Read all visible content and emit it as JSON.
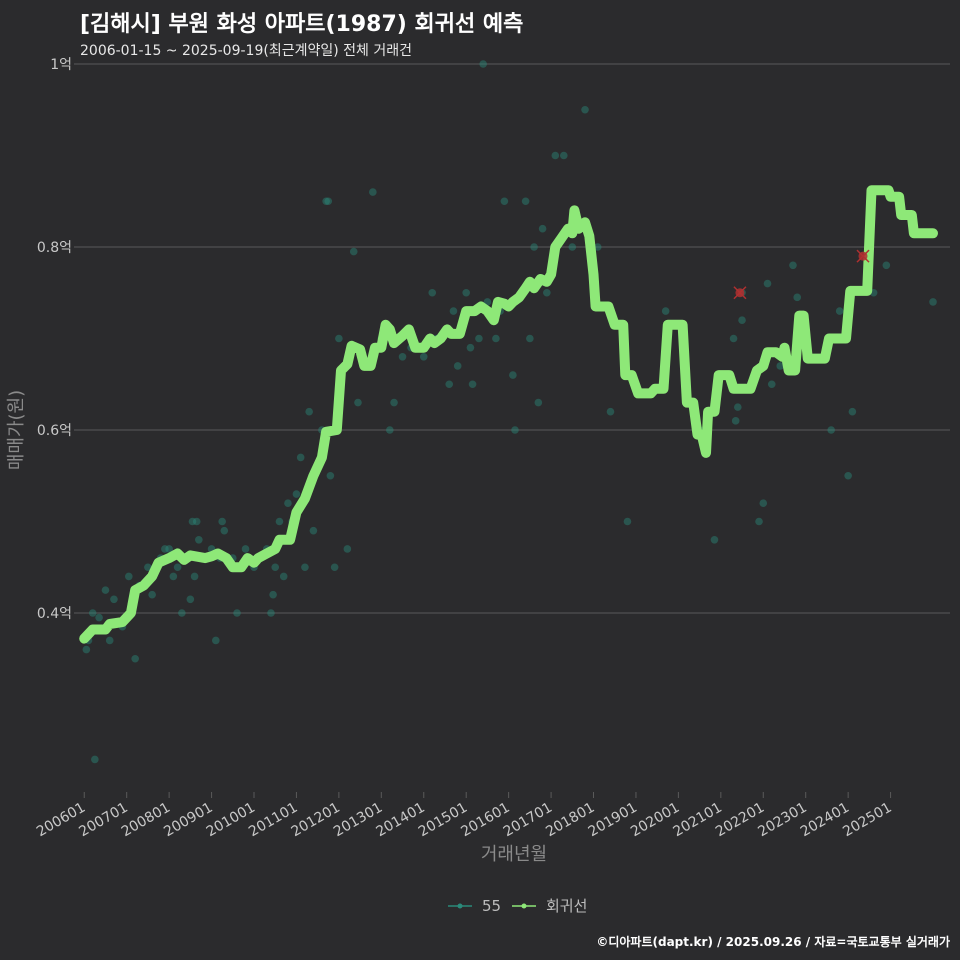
{
  "header": {
    "title": "[김해시] 부원 화성 아파트(1987) 회귀선 예측",
    "subtitle": "2006-01-15 ~ 2025-09-19(최근계약일) 전체 거래건"
  },
  "footer": {
    "credit": "©디아파트(dapt.kr) / 2025.09.26 / 자료=국토교통부 실거래가"
  },
  "colors": {
    "background": "#2b2b2d",
    "points": "#2a8a7a",
    "regression": "#8ee878",
    "highlight": "#b03030",
    "grid": "#5a5a5a"
  },
  "chart_data": {
    "type": "scatter",
    "title": "[김해시] 부원 화성 아파트(1987) 회귀선 예측",
    "xlabel": "거래년월",
    "ylabel": "매매가(원)",
    "xlim": [
      2005.9,
      2026.4
    ],
    "ylim": [
      0.2,
      1.0
    ],
    "y_ticks": [
      {
        "value": 0.4,
        "label": "0.4억"
      },
      {
        "value": 0.6,
        "label": "0.6억"
      },
      {
        "value": 0.8,
        "label": "0.8억"
      },
      {
        "value": 1.0,
        "label": "1억"
      }
    ],
    "x_ticks": [
      {
        "value": 2006.0,
        "label": "200601"
      },
      {
        "value": 2007.0,
        "label": "200701"
      },
      {
        "value": 2008.0,
        "label": "200801"
      },
      {
        "value": 2009.0,
        "label": "200901"
      },
      {
        "value": 2010.0,
        "label": "201001"
      },
      {
        "value": 2011.0,
        "label": "201101"
      },
      {
        "value": 2012.0,
        "label": "201201"
      },
      {
        "value": 2013.0,
        "label": "201301"
      },
      {
        "value": 2014.0,
        "label": "201401"
      },
      {
        "value": 2015.0,
        "label": "201501"
      },
      {
        "value": 2016.0,
        "label": "201601"
      },
      {
        "value": 2017.0,
        "label": "201701"
      },
      {
        "value": 2018.0,
        "label": "201801"
      },
      {
        "value": 2019.0,
        "label": "201901"
      },
      {
        "value": 2020.0,
        "label": "202001"
      },
      {
        "value": 2021.0,
        "label": "202101"
      },
      {
        "value": 2022.0,
        "label": "202201"
      },
      {
        "value": 2023.0,
        "label": "202301"
      },
      {
        "value": 2024.0,
        "label": "202401"
      },
      {
        "value": 2025.0,
        "label": "202501"
      }
    ],
    "legend": [
      {
        "name": "55",
        "color": "#2a8a7a"
      },
      {
        "name": "회귀선",
        "color": "#8ee878"
      }
    ],
    "series": [
      {
        "name": "55",
        "type": "scatter",
        "points": [
          [
            2006.05,
            0.36
          ],
          [
            2006.1,
            0.37
          ],
          [
            2006.2,
            0.4
          ],
          [
            2006.35,
            0.395
          ],
          [
            2006.25,
            0.24
          ],
          [
            2006.5,
            0.425
          ],
          [
            2006.6,
            0.37
          ],
          [
            2006.7,
            0.415
          ],
          [
            2006.9,
            0.385
          ],
          [
            2007.05,
            0.44
          ],
          [
            2007.2,
            0.35
          ],
          [
            2007.3,
            0.43
          ],
          [
            2007.5,
            0.45
          ],
          [
            2007.6,
            0.42
          ],
          [
            2007.8,
            0.46
          ],
          [
            2007.9,
            0.47
          ],
          [
            2008.0,
            0.47
          ],
          [
            2008.1,
            0.44
          ],
          [
            2008.2,
            0.45
          ],
          [
            2008.3,
            0.4
          ],
          [
            2008.4,
            0.46
          ],
          [
            2008.5,
            0.415
          ],
          [
            2008.55,
            0.5
          ],
          [
            2008.6,
            0.44
          ],
          [
            2008.65,
            0.5
          ],
          [
            2008.7,
            0.48
          ],
          [
            2008.8,
            0.46
          ],
          [
            2009.0,
            0.47
          ],
          [
            2009.1,
            0.37
          ],
          [
            2009.2,
            0.46
          ],
          [
            2009.25,
            0.5
          ],
          [
            2009.3,
            0.49
          ],
          [
            2009.5,
            0.46
          ],
          [
            2009.6,
            0.4
          ],
          [
            2009.8,
            0.47
          ],
          [
            2010.0,
            0.45
          ],
          [
            2010.1,
            0.46
          ],
          [
            2010.3,
            0.47
          ],
          [
            2010.4,
            0.4
          ],
          [
            2010.45,
            0.42
          ],
          [
            2010.5,
            0.45
          ],
          [
            2010.6,
            0.5
          ],
          [
            2010.7,
            0.44
          ],
          [
            2010.8,
            0.52
          ],
          [
            2010.9,
            0.5
          ],
          [
            2011.0,
            0.53
          ],
          [
            2011.1,
            0.57
          ],
          [
            2011.2,
            0.45
          ],
          [
            2011.3,
            0.62
          ],
          [
            2011.4,
            0.49
          ],
          [
            2011.6,
            0.6
          ],
          [
            2011.7,
            0.85
          ],
          [
            2011.75,
            0.85
          ],
          [
            2011.8,
            0.55
          ],
          [
            2011.9,
            0.45
          ],
          [
            2012.0,
            0.7
          ],
          [
            2012.2,
            0.47
          ],
          [
            2012.35,
            0.795
          ],
          [
            2012.45,
            0.63
          ],
          [
            2012.8,
            0.86
          ],
          [
            2013.0,
            0.7
          ],
          [
            2013.2,
            0.6
          ],
          [
            2013.3,
            0.63
          ],
          [
            2013.5,
            0.68
          ],
          [
            2013.7,
            0.69
          ],
          [
            2014.0,
            0.68
          ],
          [
            2014.2,
            0.75
          ],
          [
            2014.3,
            0.7
          ],
          [
            2014.6,
            0.65
          ],
          [
            2014.7,
            0.73
          ],
          [
            2014.8,
            0.67
          ],
          [
            2015.0,
            0.75
          ],
          [
            2015.1,
            0.69
          ],
          [
            2015.15,
            0.65
          ],
          [
            2015.3,
            0.7
          ],
          [
            2015.4,
            1.0
          ],
          [
            2015.5,
            0.74
          ],
          [
            2015.7,
            0.7
          ],
          [
            2015.8,
            0.73
          ],
          [
            2015.9,
            0.85
          ],
          [
            2016.1,
            0.66
          ],
          [
            2016.15,
            0.6
          ],
          [
            2016.3,
            0.75
          ],
          [
            2016.4,
            0.85
          ],
          [
            2016.5,
            0.7
          ],
          [
            2016.6,
            0.8
          ],
          [
            2016.7,
            0.63
          ],
          [
            2016.8,
            0.82
          ],
          [
            2016.9,
            0.75
          ],
          [
            2017.1,
            0.9
          ],
          [
            2017.3,
            0.9
          ],
          [
            2017.4,
            0.82
          ],
          [
            2017.5,
            0.8
          ],
          [
            2017.6,
            0.82
          ],
          [
            2017.8,
            0.95
          ],
          [
            2018.1,
            0.8
          ],
          [
            2018.4,
            0.62
          ],
          [
            2018.8,
            0.5
          ],
          [
            2019.7,
            0.73
          ],
          [
            2020.3,
            0.63
          ],
          [
            2020.6,
            0.6
          ],
          [
            2020.85,
            0.48
          ],
          [
            2021.3,
            0.7
          ],
          [
            2021.35,
            0.61
          ],
          [
            2021.4,
            0.625
          ],
          [
            2021.5,
            0.72
          ],
          [
            2021.5,
            0.75
          ],
          [
            2021.9,
            0.5
          ],
          [
            2022.0,
            0.52
          ],
          [
            2022.1,
            0.76
          ],
          [
            2022.2,
            0.65
          ],
          [
            2022.4,
            0.67
          ],
          [
            2022.7,
            0.78
          ],
          [
            2022.8,
            0.745
          ],
          [
            2023.0,
            0.7
          ],
          [
            2023.6,
            0.6
          ],
          [
            2023.8,
            0.73
          ],
          [
            2024.0,
            0.55
          ],
          [
            2024.1,
            0.62
          ],
          [
            2024.5,
            0.79
          ],
          [
            2024.6,
            0.75
          ],
          [
            2024.9,
            0.78
          ],
          [
            2026.0,
            0.74
          ]
        ]
      },
      {
        "name": "회귀선",
        "type": "line",
        "points": [
          [
            2006.0,
            0.372
          ],
          [
            2006.2,
            0.382
          ],
          [
            2006.5,
            0.382
          ],
          [
            2006.6,
            0.388
          ],
          [
            2006.9,
            0.39
          ],
          [
            2007.1,
            0.4
          ],
          [
            2007.2,
            0.425
          ],
          [
            2007.4,
            0.43
          ],
          [
            2007.6,
            0.44
          ],
          [
            2007.75,
            0.455
          ],
          [
            2008.0,
            0.46
          ],
          [
            2008.2,
            0.465
          ],
          [
            2008.35,
            0.458
          ],
          [
            2008.5,
            0.463
          ],
          [
            2008.85,
            0.46
          ],
          [
            2009.0,
            0.462
          ],
          [
            2009.15,
            0.465
          ],
          [
            2009.35,
            0.46
          ],
          [
            2009.5,
            0.45
          ],
          [
            2009.7,
            0.45
          ],
          [
            2009.85,
            0.46
          ],
          [
            2010.0,
            0.455
          ],
          [
            2010.1,
            0.46
          ],
          [
            2010.3,
            0.465
          ],
          [
            2010.5,
            0.47
          ],
          [
            2010.6,
            0.48
          ],
          [
            2010.85,
            0.48
          ],
          [
            2011.0,
            0.51
          ],
          [
            2011.2,
            0.525
          ],
          [
            2011.4,
            0.55
          ],
          [
            2011.6,
            0.57
          ],
          [
            2011.7,
            0.598
          ],
          [
            2011.95,
            0.6
          ],
          [
            2012.05,
            0.665
          ],
          [
            2012.2,
            0.672
          ],
          [
            2012.3,
            0.692
          ],
          [
            2012.5,
            0.688
          ],
          [
            2012.6,
            0.67
          ],
          [
            2012.75,
            0.67
          ],
          [
            2012.85,
            0.69
          ],
          [
            2013.0,
            0.69
          ],
          [
            2013.1,
            0.715
          ],
          [
            2013.2,
            0.71
          ],
          [
            2013.3,
            0.695
          ],
          [
            2013.5,
            0.703
          ],
          [
            2013.65,
            0.71
          ],
          [
            2013.8,
            0.69
          ],
          [
            2014.0,
            0.69
          ],
          [
            2014.15,
            0.7
          ],
          [
            2014.25,
            0.695
          ],
          [
            2014.4,
            0.7
          ],
          [
            2014.55,
            0.71
          ],
          [
            2014.65,
            0.705
          ],
          [
            2014.85,
            0.705
          ],
          [
            2015.0,
            0.73
          ],
          [
            2015.2,
            0.73
          ],
          [
            2015.35,
            0.735
          ],
          [
            2015.5,
            0.73
          ],
          [
            2015.65,
            0.72
          ],
          [
            2015.75,
            0.74
          ],
          [
            2015.9,
            0.738
          ],
          [
            2016.0,
            0.735
          ],
          [
            2016.1,
            0.74
          ],
          [
            2016.25,
            0.745
          ],
          [
            2016.4,
            0.755
          ],
          [
            2016.5,
            0.762
          ],
          [
            2016.6,
            0.755
          ],
          [
            2016.75,
            0.765
          ],
          [
            2016.9,
            0.762
          ],
          [
            2017.0,
            0.77
          ],
          [
            2017.1,
            0.8
          ],
          [
            2017.25,
            0.81
          ],
          [
            2017.4,
            0.82
          ],
          [
            2017.5,
            0.815
          ],
          [
            2017.55,
            0.84
          ],
          [
            2017.65,
            0.82
          ],
          [
            2017.8,
            0.827
          ],
          [
            2017.9,
            0.812
          ],
          [
            2018.0,
            0.77
          ],
          [
            2018.05,
            0.735
          ],
          [
            2018.35,
            0.735
          ],
          [
            2018.5,
            0.715
          ],
          [
            2018.7,
            0.715
          ],
          [
            2018.75,
            0.66
          ],
          [
            2018.9,
            0.66
          ],
          [
            2019.05,
            0.64
          ],
          [
            2019.35,
            0.64
          ],
          [
            2019.45,
            0.645
          ],
          [
            2019.65,
            0.645
          ],
          [
            2019.75,
            0.715
          ],
          [
            2020.1,
            0.715
          ],
          [
            2020.2,
            0.63
          ],
          [
            2020.35,
            0.63
          ],
          [
            2020.45,
            0.595
          ],
          [
            2020.55,
            0.595
          ],
          [
            2020.65,
            0.575
          ],
          [
            2020.7,
            0.62
          ],
          [
            2020.85,
            0.62
          ],
          [
            2020.95,
            0.66
          ],
          [
            2021.2,
            0.66
          ],
          [
            2021.3,
            0.645
          ],
          [
            2021.7,
            0.645
          ],
          [
            2021.85,
            0.665
          ],
          [
            2022.0,
            0.67
          ],
          [
            2022.1,
            0.685
          ],
          [
            2022.3,
            0.685
          ],
          [
            2022.45,
            0.68
          ],
          [
            2022.5,
            0.69
          ],
          [
            2022.6,
            0.665
          ],
          [
            2022.75,
            0.665
          ],
          [
            2022.85,
            0.725
          ],
          [
            2022.95,
            0.725
          ],
          [
            2023.05,
            0.678
          ],
          [
            2023.45,
            0.678
          ],
          [
            2023.55,
            0.7
          ],
          [
            2023.95,
            0.7
          ],
          [
            2024.05,
            0.752
          ],
          [
            2024.45,
            0.752
          ],
          [
            2024.55,
            0.862
          ],
          [
            2024.95,
            0.862
          ],
          [
            2025.0,
            0.855
          ],
          [
            2025.2,
            0.855
          ],
          [
            2025.25,
            0.835
          ],
          [
            2025.5,
            0.835
          ],
          [
            2025.55,
            0.815
          ],
          [
            2026.0,
            0.815
          ]
        ]
      }
    ],
    "highlighted_points": [
      [
        2021.45,
        0.75
      ],
      [
        2024.35,
        0.79
      ]
    ]
  }
}
